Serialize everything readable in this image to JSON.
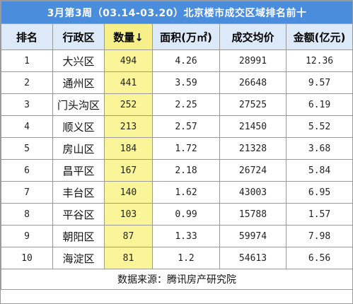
{
  "title": "3月第3周（03.14-03.20）北京楼市成交区域排名前十",
  "headers": [
    "排名",
    "行政区",
    "数量↓",
    "面积(万㎡)",
    "成交均价",
    "金额(亿元)"
  ],
  "rows": [
    {
      "rank": "1",
      "district": "大兴区",
      "count": "494",
      "area": "4.26",
      "price": "28991",
      "amount": "12.36"
    },
    {
      "rank": "2",
      "district": "通州区",
      "count": "441",
      "area": "3.59",
      "price": "26648",
      "amount": "9.57"
    },
    {
      "rank": "3",
      "district": "门头沟区",
      "count": "252",
      "area": "2.25",
      "price": "27525",
      "amount": "6.19"
    },
    {
      "rank": "4",
      "district": "顺义区",
      "count": "213",
      "area": "2.57",
      "price": "21450",
      "amount": "5.52"
    },
    {
      "rank": "5",
      "district": "房山区",
      "count": "184",
      "area": "1.72",
      "price": "21328",
      "amount": "3.68"
    },
    {
      "rank": "6",
      "district": "昌平区",
      "count": "167",
      "area": "2.18",
      "price": "26724",
      "amount": "5.84"
    },
    {
      "rank": "7",
      "district": "丰台区",
      "count": "140",
      "area": "1.62",
      "price": "43003",
      "amount": "6.95"
    },
    {
      "rank": "8",
      "district": "平谷区",
      "count": "103",
      "area": "0.99",
      "price": "15788",
      "amount": "1.57"
    },
    {
      "rank": "9",
      "district": "朝阳区",
      "count": "87",
      "area": "1.33",
      "price": "59974",
      "amount": "7.98"
    },
    {
      "rank": "10",
      "district": "海淀区",
      "count": "81",
      "area": "1.2",
      "price": "54613",
      "amount": "6.56"
    }
  ],
  "footer": "数据来源：腾讯房产研究院",
  "colors": {
    "title_bg": "#4a8ddc",
    "header_bg": "#dce9f8",
    "highlight": "#fbf59a",
    "border": "#9a9a9a"
  }
}
